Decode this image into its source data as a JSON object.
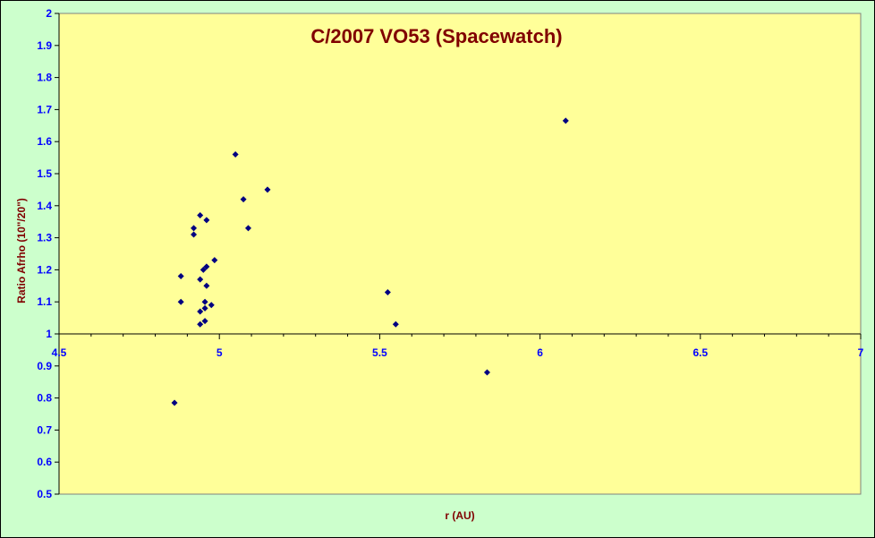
{
  "chart_data": {
    "type": "scatter",
    "title": "C/2007 VO53 (Spacewatch)",
    "xlabel": "r (AU)",
    "ylabel": "Ratio Afrho (10\"/20\")",
    "xlim": [
      4.5,
      7
    ],
    "ylim": [
      0.5,
      2
    ],
    "x_ticks": [
      "4.5",
      "5",
      "5.5",
      "6",
      "6.5",
      "7"
    ],
    "y_ticks": [
      "0.5",
      "0.6",
      "0.7",
      "0.8",
      "0.9",
      "1",
      "1.1",
      "1.2",
      "1.3",
      "1.4",
      "1.5",
      "1.6",
      "1.7",
      "1.8",
      "1.9",
      "2"
    ],
    "x_axis_crosses_at_y": 1,
    "grid": false,
    "legend": "none",
    "colors": {
      "plot_area": "#ffff99",
      "chart_area": "#ccffcc",
      "markers": "#000080",
      "tick_labels": "#0000ff",
      "title": "#800000"
    },
    "marker": "diamond",
    "points": [
      {
        "x": 4.86,
        "y": 0.785
      },
      {
        "x": 4.88,
        "y": 1.18
      },
      {
        "x": 4.88,
        "y": 1.1
      },
      {
        "x": 4.92,
        "y": 1.31
      },
      {
        "x": 4.92,
        "y": 1.33
      },
      {
        "x": 4.94,
        "y": 1.37
      },
      {
        "x": 4.94,
        "y": 1.17
      },
      {
        "x": 4.94,
        "y": 1.07
      },
      {
        "x": 4.94,
        "y": 1.03
      },
      {
        "x": 4.95,
        "y": 1.2
      },
      {
        "x": 4.955,
        "y": 1.1
      },
      {
        "x": 4.955,
        "y": 1.08
      },
      {
        "x": 4.955,
        "y": 1.04
      },
      {
        "x": 4.96,
        "y": 1.355
      },
      {
        "x": 4.96,
        "y": 1.21
      },
      {
        "x": 4.96,
        "y": 1.15
      },
      {
        "x": 4.975,
        "y": 1.09
      },
      {
        "x": 4.985,
        "y": 1.23
      },
      {
        "x": 5.05,
        "y": 1.56
      },
      {
        "x": 5.075,
        "y": 1.42
      },
      {
        "x": 5.09,
        "y": 1.33
      },
      {
        "x": 5.15,
        "y": 1.45
      },
      {
        "x": 5.525,
        "y": 1.13
      },
      {
        "x": 5.55,
        "y": 1.03
      },
      {
        "x": 5.835,
        "y": 0.88
      },
      {
        "x": 6.08,
        "y": 1.665
      }
    ]
  }
}
